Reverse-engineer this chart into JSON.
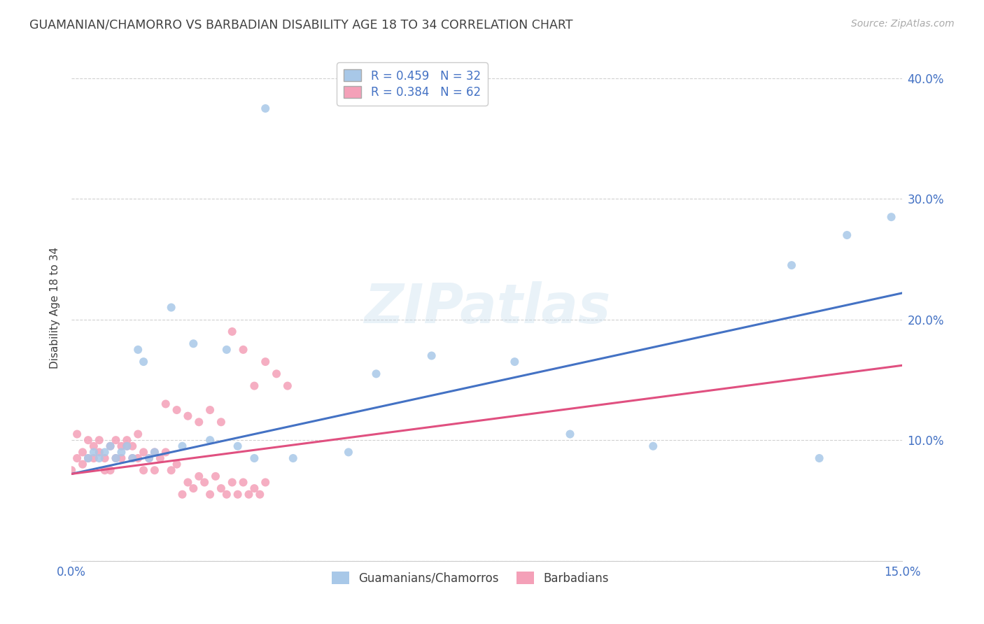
{
  "title": "GUAMANIAN/CHAMORRO VS BARBADIAN DISABILITY AGE 18 TO 34 CORRELATION CHART",
  "source": "Source: ZipAtlas.com",
  "ylabel": "Disability Age 18 to 34",
  "x_min": 0.0,
  "x_max": 0.15,
  "y_min": 0.0,
  "y_max": 0.42,
  "y_ticks": [
    0.0,
    0.1,
    0.2,
    0.3,
    0.4
  ],
  "y_tick_labels": [
    "",
    "10.0%",
    "20.0%",
    "30.0%",
    "40.0%"
  ],
  "x_ticks": [
    0.0,
    0.05,
    0.1,
    0.15
  ],
  "x_tick_labels": [
    "0.0%",
    "",
    "",
    "15.0%"
  ],
  "guamanian_color": "#a8c8e8",
  "barbadian_color": "#f4a0b8",
  "guamanian_line_color": "#4472c4",
  "barbadian_line_color": "#e05080",
  "background_color": "#ffffff",
  "grid_color": "#cccccc",
  "title_color": "#404040",
  "tick_label_color": "#4472c4",
  "watermark": "ZIPatlas",
  "marker_size": 75,
  "line_width": 2.2,
  "legend_label_g": "R = 0.459   N = 32",
  "legend_label_b": "R = 0.384   N = 62",
  "bottom_legend_g": "Guamanians/Chamorros",
  "bottom_legend_b": "Barbadians",
  "guamanian_x": [
    0.003,
    0.004,
    0.005,
    0.006,
    0.007,
    0.008,
    0.009,
    0.01,
    0.011,
    0.012,
    0.013,
    0.014,
    0.015,
    0.018,
    0.02,
    0.022,
    0.025,
    0.028,
    0.03,
    0.033,
    0.04,
    0.05,
    0.055,
    0.065,
    0.08,
    0.09,
    0.105,
    0.13,
    0.135,
    0.14,
    0.148,
    0.035
  ],
  "guamanian_y": [
    0.085,
    0.09,
    0.085,
    0.09,
    0.095,
    0.085,
    0.09,
    0.095,
    0.085,
    0.175,
    0.165,
    0.085,
    0.09,
    0.21,
    0.095,
    0.18,
    0.1,
    0.175,
    0.095,
    0.085,
    0.085,
    0.09,
    0.155,
    0.17,
    0.165,
    0.105,
    0.095,
    0.245,
    0.085,
    0.27,
    0.285,
    0.375
  ],
  "barbadian_x": [
    0.0,
    0.001,
    0.001,
    0.002,
    0.002,
    0.003,
    0.003,
    0.004,
    0.004,
    0.005,
    0.005,
    0.006,
    0.006,
    0.007,
    0.007,
    0.008,
    0.008,
    0.009,
    0.009,
    0.01,
    0.01,
    0.011,
    0.011,
    0.012,
    0.012,
    0.013,
    0.013,
    0.014,
    0.015,
    0.015,
    0.016,
    0.017,
    0.018,
    0.019,
    0.02,
    0.021,
    0.022,
    0.023,
    0.024,
    0.025,
    0.026,
    0.027,
    0.028,
    0.029,
    0.03,
    0.031,
    0.032,
    0.033,
    0.034,
    0.035,
    0.017,
    0.019,
    0.021,
    0.023,
    0.025,
    0.027,
    0.029,
    0.031,
    0.033,
    0.035,
    0.037,
    0.039
  ],
  "barbadian_y": [
    0.075,
    0.085,
    0.105,
    0.08,
    0.09,
    0.085,
    0.1,
    0.085,
    0.095,
    0.09,
    0.1,
    0.075,
    0.085,
    0.095,
    0.075,
    0.085,
    0.1,
    0.095,
    0.085,
    0.1,
    0.095,
    0.085,
    0.095,
    0.085,
    0.105,
    0.09,
    0.075,
    0.085,
    0.09,
    0.075,
    0.085,
    0.09,
    0.075,
    0.08,
    0.055,
    0.065,
    0.06,
    0.07,
    0.065,
    0.055,
    0.07,
    0.06,
    0.055,
    0.065,
    0.055,
    0.065,
    0.055,
    0.06,
    0.055,
    0.065,
    0.13,
    0.125,
    0.12,
    0.115,
    0.125,
    0.115,
    0.19,
    0.175,
    0.145,
    0.165,
    0.155,
    0.145
  ],
  "guamanian_line_x": [
    0.0,
    0.15
  ],
  "guamanian_line_y": [
    0.072,
    0.222
  ],
  "barbadian_line_x": [
    0.0,
    0.15
  ],
  "barbadian_line_y": [
    0.072,
    0.162
  ]
}
